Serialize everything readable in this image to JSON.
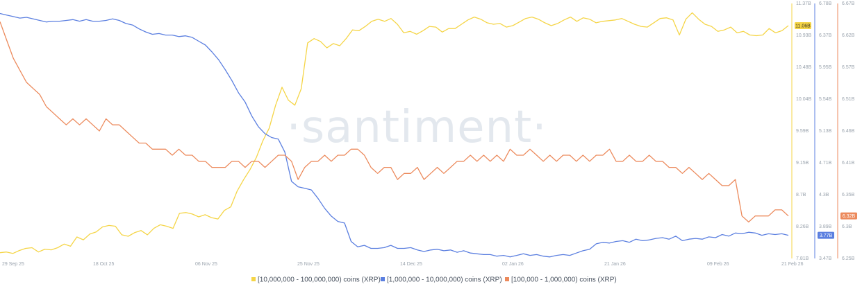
{
  "watermark": "·santiment·",
  "chart_data": {
    "type": "line",
    "x_ticks": [
      "29 Sep 25",
      "18 Oct 25",
      "06 Nov 25",
      "25 Nov 25",
      "14 Dec 25",
      "02 Jan 26",
      "21 Jan 26",
      "09 Feb 26",
      "21 Feb 26"
    ],
    "x_range": [
      "2025-09-29",
      "2026-02-21"
    ],
    "axes": [
      {
        "id": "y1",
        "ticks": [
          "11.37B",
          "10.93B",
          "10.48B",
          "10.04B",
          "9.59B",
          "9.15B",
          "8.7B",
          "8.26B",
          "7.81B"
        ],
        "ylim": [
          7.81,
          11.37
        ],
        "unit": "B",
        "color": "#f5d547"
      },
      {
        "id": "y2",
        "ticks": [
          "6.78B",
          "6.37B",
          "5.95B",
          "5.54B",
          "5.13B",
          "4.71B",
          "4.3B",
          "3.89B",
          "3.47B"
        ],
        "ylim": [
          3.47,
          6.78
        ],
        "unit": "B",
        "color": "#5b7fe0"
      },
      {
        "id": "y3",
        "ticks": [
          "6.67B",
          "6.62B",
          "6.57B",
          "6.51B",
          "6.46B",
          "6.41B",
          "6.35B",
          "6.3B",
          "6.25B"
        ],
        "ylim": [
          6.25,
          6.67
        ],
        "unit": "B",
        "color": "#ec8a5c"
      }
    ],
    "series": [
      {
        "name": "[10,000,000 - 100,000,000) coins (XRP)",
        "axis": "y1",
        "color": "#f5d547",
        "last_label": "11.06B",
        "values": [
          7.89,
          7.9,
          7.88,
          7.92,
          7.95,
          7.96,
          7.9,
          7.94,
          7.93,
          7.96,
          8.01,
          7.98,
          8.11,
          8.07,
          8.15,
          8.18,
          8.25,
          8.27,
          8.26,
          8.14,
          8.12,
          8.17,
          8.2,
          8.14,
          8.23,
          8.28,
          8.26,
          8.23,
          8.44,
          8.45,
          8.43,
          8.39,
          8.42,
          8.38,
          8.36,
          8.48,
          8.53,
          8.75,
          8.91,
          9.05,
          9.22,
          9.45,
          9.63,
          9.95,
          10.2,
          10.02,
          9.95,
          10.18,
          10.82,
          10.88,
          10.84,
          10.75,
          10.81,
          10.78,
          10.88,
          11.0,
          10.99,
          11.05,
          11.12,
          11.15,
          11.12,
          11.16,
          11.08,
          10.96,
          10.98,
          10.94,
          10.99,
          11.05,
          11.04,
          10.97,
          11.02,
          11.02,
          11.08,
          11.14,
          11.18,
          11.15,
          11.1,
          11.08,
          11.09,
          11.04,
          11.06,
          11.11,
          11.16,
          11.18,
          11.15,
          11.1,
          11.06,
          11.09,
          11.14,
          11.18,
          11.12,
          11.17,
          11.15,
          11.1,
          11.12,
          11.13,
          11.14,
          11.16,
          11.12,
          11.08,
          11.05,
          11.04,
          11.1,
          11.16,
          11.17,
          11.14,
          10.93,
          11.15,
          11.24,
          11.15,
          11.08,
          11.05,
          10.98,
          11.0,
          11.04,
          10.96,
          10.98,
          10.93,
          10.92,
          10.93,
          11.02,
          10.96,
          10.99,
          11.06
        ]
      },
      {
        "name": "[1,000,000 - 10,000,000) coins (XRP)",
        "axis": "y2",
        "color": "#5b7fe0",
        "last_label": "3.77B",
        "values": [
          6.65,
          6.63,
          6.61,
          6.59,
          6.6,
          6.58,
          6.56,
          6.54,
          6.55,
          6.55,
          6.56,
          6.57,
          6.55,
          6.57,
          6.55,
          6.55,
          6.56,
          6.58,
          6.56,
          6.52,
          6.5,
          6.45,
          6.41,
          6.38,
          6.39,
          6.37,
          6.37,
          6.35,
          6.36,
          6.34,
          6.29,
          6.24,
          6.15,
          6.05,
          5.92,
          5.78,
          5.62,
          5.5,
          5.32,
          5.18,
          5.09,
          5.04,
          5.02,
          4.85,
          4.47,
          4.4,
          4.38,
          4.36,
          4.25,
          4.12,
          4.02,
          3.95,
          3.93,
          3.69,
          3.62,
          3.64,
          3.6,
          3.6,
          3.61,
          3.64,
          3.6,
          3.6,
          3.61,
          3.58,
          3.56,
          3.58,
          3.59,
          3.57,
          3.58,
          3.55,
          3.57,
          3.54,
          3.53,
          3.52,
          3.52,
          3.5,
          3.51,
          3.49,
          3.51,
          3.53,
          3.51,
          3.52,
          3.5,
          3.49,
          3.51,
          3.52,
          3.51,
          3.54,
          3.57,
          3.59,
          3.66,
          3.68,
          3.67,
          3.69,
          3.7,
          3.68,
          3.72,
          3.7,
          3.71,
          3.73,
          3.74,
          3.72,
          3.76,
          3.7,
          3.72,
          3.73,
          3.72,
          3.75,
          3.74,
          3.78,
          3.76,
          3.8,
          3.79,
          3.81,
          3.8,
          3.77,
          3.79,
          3.78,
          3.79,
          3.77
        ]
      },
      {
        "name": "[100,000 - 1,000,000) coins (XRP)",
        "axis": "y3",
        "color": "#ec8a5c",
        "last_label": "6.32B",
        "values": [
          6.64,
          6.61,
          6.58,
          6.56,
          6.54,
          6.53,
          6.52,
          6.5,
          6.49,
          6.48,
          6.47,
          6.48,
          6.47,
          6.48,
          6.47,
          6.46,
          6.48,
          6.47,
          6.47,
          6.46,
          6.45,
          6.44,
          6.44,
          6.43,
          6.43,
          6.43,
          6.42,
          6.43,
          6.42,
          6.42,
          6.41,
          6.41,
          6.4,
          6.4,
          6.4,
          6.41,
          6.41,
          6.4,
          6.41,
          6.41,
          6.4,
          6.41,
          6.42,
          6.42,
          6.41,
          6.38,
          6.4,
          6.41,
          6.41,
          6.42,
          6.41,
          6.42,
          6.42,
          6.43,
          6.43,
          6.42,
          6.4,
          6.39,
          6.4,
          6.4,
          6.38,
          6.39,
          6.39,
          6.4,
          6.38,
          6.39,
          6.4,
          6.39,
          6.4,
          6.41,
          6.41,
          6.42,
          6.41,
          6.42,
          6.41,
          6.42,
          6.41,
          6.43,
          6.42,
          6.42,
          6.43,
          6.42,
          6.41,
          6.42,
          6.41,
          6.42,
          6.42,
          6.41,
          6.42,
          6.41,
          6.42,
          6.42,
          6.43,
          6.41,
          6.41,
          6.42,
          6.41,
          6.41,
          6.42,
          6.41,
          6.41,
          6.4,
          6.4,
          6.39,
          6.4,
          6.39,
          6.38,
          6.39,
          6.38,
          6.37,
          6.37,
          6.38,
          6.32,
          6.31,
          6.32,
          6.32,
          6.32,
          6.33,
          6.33,
          6.32
        ]
      }
    ],
    "legend_position": "bottom-center",
    "grid": false
  }
}
